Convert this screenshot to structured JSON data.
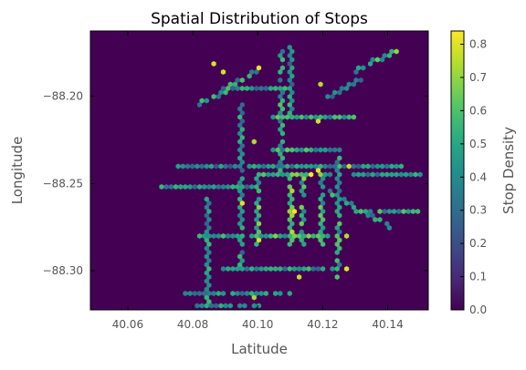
{
  "chart_data": {
    "type": "heatmap",
    "subtype": "hexbin",
    "title": "Spatial Distribution of Stops",
    "xlabel": "Latitude",
    "ylabel": "Longitude",
    "xlim": [
      40.0485,
      40.1525
    ],
    "ylim": [
      -88.3225,
      -88.1625
    ],
    "x_ticks": [
      40.06,
      40.08,
      40.1,
      40.12,
      40.14
    ],
    "x_tick_labels": [
      "40.06",
      "40.08",
      "40.10",
      "40.12",
      "40.14"
    ],
    "y_ticks": [
      -88.2,
      -88.25,
      -88.3
    ],
    "y_tick_labels": [
      "−88.20",
      "−88.25",
      "−88.30"
    ],
    "grid": false,
    "background_value": 0.0,
    "colorbar": {
      "label": "Stop Density",
      "range": [
        0.0,
        0.84
      ],
      "ticks": [
        0.0,
        0.1,
        0.2,
        0.3,
        0.4,
        0.5,
        0.6,
        0.7,
        0.8
      ],
      "tick_labels": [
        "0.0",
        "0.1",
        "0.2",
        "0.3",
        "0.4",
        "0.5",
        "0.6",
        "0.7",
        "0.8"
      ],
      "colormap": "viridis"
    },
    "corridors": [
      {
        "from": [
          40.1,
          -88.245
        ],
        "to": [
          40.1,
          -88.285
        ],
        "value": 0.52
      },
      {
        "from": [
          40.11,
          -88.245
        ],
        "to": [
          40.11,
          -88.285
        ],
        "value": 0.58
      },
      {
        "from": [
          40.114,
          -88.245
        ],
        "to": [
          40.114,
          -88.285
        ],
        "value": 0.55
      },
      {
        "from": [
          40.12,
          -88.245
        ],
        "to": [
          40.12,
          -88.285
        ],
        "value": 0.5
      },
      {
        "from": [
          40.1,
          -88.245
        ],
        "to": [
          40.122,
          -88.245
        ],
        "value": 0.55
      },
      {
        "from": [
          40.1,
          -88.281
        ],
        "to": [
          40.122,
          -88.281
        ],
        "value": 0.52
      },
      {
        "from": [
          40.082,
          -88.281
        ],
        "to": [
          40.1,
          -88.281
        ],
        "value": 0.48
      },
      {
        "from": [
          40.105,
          -88.23
        ],
        "to": [
          40.125,
          -88.23
        ],
        "value": 0.46
      },
      {
        "from": [
          40.105,
          -88.212
        ],
        "to": [
          40.13,
          -88.212
        ],
        "value": 0.5
      },
      {
        "from": [
          40.075,
          -88.24
        ],
        "to": [
          40.145,
          -88.24
        ],
        "value": 0.38
      },
      {
        "from": [
          40.07,
          -88.252
        ],
        "to": [
          40.1,
          -88.252
        ],
        "value": 0.4
      },
      {
        "from": [
          40.09,
          -88.3
        ],
        "to": [
          40.125,
          -88.3
        ],
        "value": 0.42
      },
      {
        "from": [
          40.078,
          -88.312
        ],
        "to": [
          40.11,
          -88.312
        ],
        "value": 0.38
      },
      {
        "from": [
          40.082,
          -88.205
        ],
        "to": [
          40.1,
          -88.185
        ],
        "value": 0.45
      },
      {
        "from": [
          40.09,
          -88.196
        ],
        "to": [
          40.11,
          -88.196
        ],
        "value": 0.42
      },
      {
        "from": [
          40.107,
          -88.175
        ],
        "to": [
          40.107,
          -88.245
        ],
        "value": 0.44
      },
      {
        "from": [
          40.095,
          -88.205
        ],
        "to": [
          40.095,
          -88.3
        ],
        "value": 0.4
      },
      {
        "from": [
          40.125,
          -88.23
        ],
        "to": [
          40.125,
          -88.305
        ],
        "value": 0.46
      },
      {
        "from": [
          40.122,
          -88.255
        ],
        "to": [
          40.14,
          -88.275
        ],
        "value": 0.44
      },
      {
        "from": [
          40.13,
          -88.185
        ],
        "to": [
          40.141,
          -88.175
        ],
        "value": 0.5
      },
      {
        "from": [
          40.085,
          -88.26
        ],
        "to": [
          40.085,
          -88.32
        ],
        "value": 0.4
      },
      {
        "from": [
          40.082,
          -88.32
        ],
        "to": [
          40.1,
          -88.32
        ],
        "value": 0.36
      },
      {
        "from": [
          40.122,
          -88.2
        ],
        "to": [
          40.132,
          -88.19
        ],
        "value": 0.42
      },
      {
        "from": [
          40.135,
          -88.265
        ],
        "to": [
          40.15,
          -88.265
        ],
        "value": 0.45
      },
      {
        "from": [
          40.13,
          -88.245
        ],
        "to": [
          40.15,
          -88.245
        ],
        "value": 0.4
      },
      {
        "from": [
          40.11,
          -88.17
        ],
        "to": [
          40.11,
          -88.21
        ],
        "value": 0.4
      }
    ],
    "hotspots": [
      {
        "x": 40.086,
        "y": -88.182,
        "value": 0.8
      },
      {
        "x": 40.09,
        "y": -88.186,
        "value": 0.78
      },
      {
        "x": 40.101,
        "y": -88.183,
        "value": 0.82
      },
      {
        "x": 40.12,
        "y": -88.193,
        "value": 0.75
      },
      {
        "x": 40.118,
        "y": -88.214,
        "value": 0.78
      },
      {
        "x": 40.099,
        "y": -88.225,
        "value": 0.74
      },
      {
        "x": 40.116,
        "y": -88.245,
        "value": 0.84
      },
      {
        "x": 40.119,
        "y": -88.243,
        "value": 0.8
      },
      {
        "x": 40.128,
        "y": -88.24,
        "value": 0.76
      },
      {
        "x": 40.095,
        "y": -88.261,
        "value": 0.8
      },
      {
        "x": 40.111,
        "y": -88.265,
        "value": 0.82
      },
      {
        "x": 40.1,
        "y": -88.282,
        "value": 0.78
      },
      {
        "x": 40.128,
        "y": -88.279,
        "value": 0.74
      },
      {
        "x": 40.113,
        "y": -88.304,
        "value": 0.76
      },
      {
        "x": 40.127,
        "y": -88.3,
        "value": 0.8
      },
      {
        "x": 40.099,
        "y": -88.316,
        "value": 0.72
      },
      {
        "x": 40.143,
        "y": -88.175,
        "value": 0.7
      }
    ]
  }
}
